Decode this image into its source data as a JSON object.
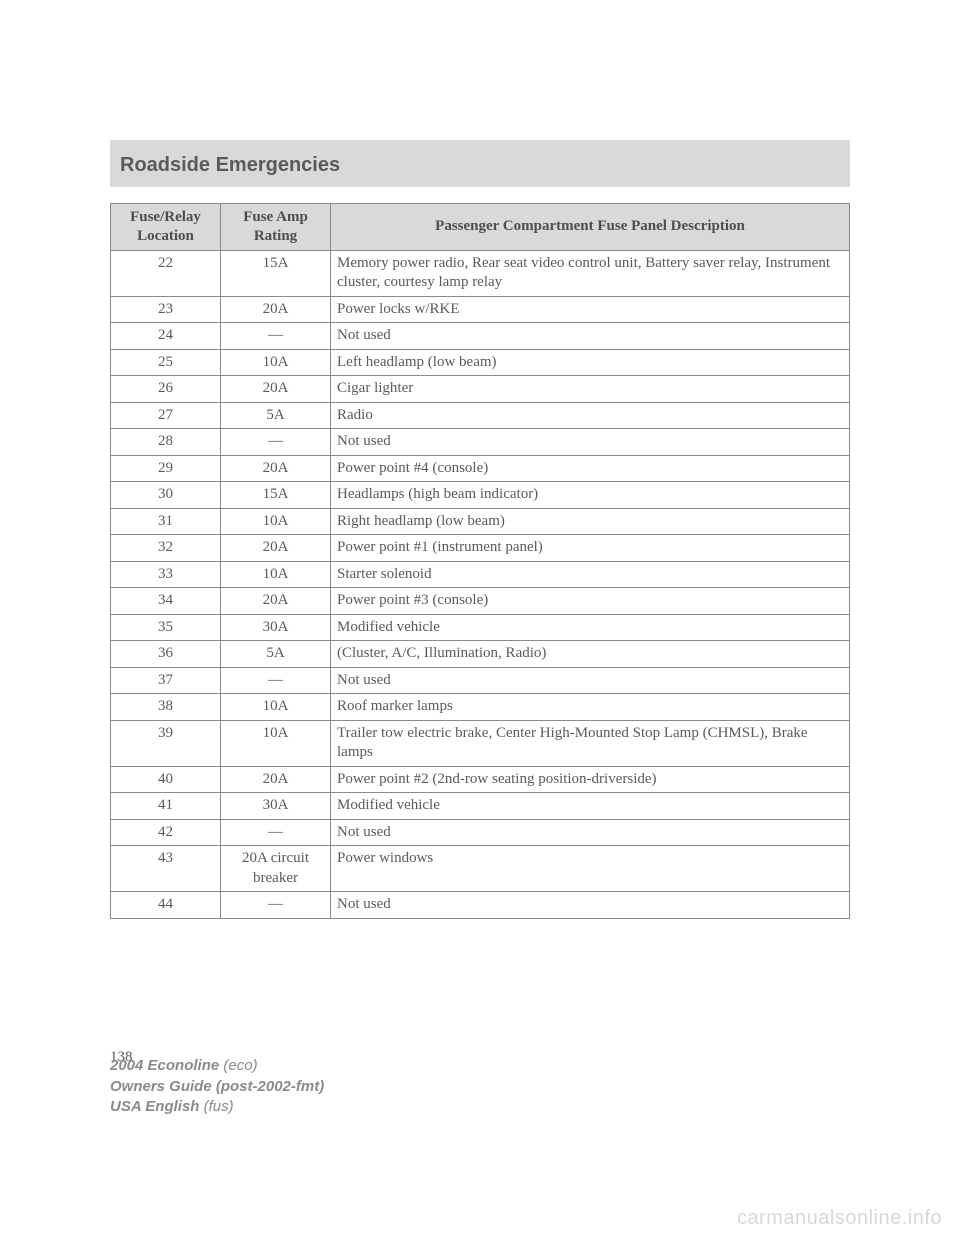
{
  "header": {
    "title": "Roadside Emergencies"
  },
  "table": {
    "columns": {
      "c1": "Fuse/Relay Location",
      "c2": "Fuse Amp Rating",
      "c3": "Passenger Compartment Fuse Panel Description"
    },
    "rows": [
      {
        "loc": "22",
        "amp": "15A",
        "desc": "Memory power radio, Rear seat video control unit, Battery saver relay, Instrument cluster, courtesy lamp relay"
      },
      {
        "loc": "23",
        "amp": "20A",
        "desc": "Power locks w/RKE"
      },
      {
        "loc": "24",
        "amp": "—",
        "desc": "Not used"
      },
      {
        "loc": "25",
        "amp": "10A",
        "desc": "Left headlamp (low beam)"
      },
      {
        "loc": "26",
        "amp": "20A",
        "desc": "Cigar lighter"
      },
      {
        "loc": "27",
        "amp": "5A",
        "desc": "Radio"
      },
      {
        "loc": "28",
        "amp": "—",
        "desc": "Not used"
      },
      {
        "loc": "29",
        "amp": "20A",
        "desc": "Power point #4 (console)"
      },
      {
        "loc": "30",
        "amp": "15A",
        "desc": "Headlamps (high beam indicator)"
      },
      {
        "loc": "31",
        "amp": "10A",
        "desc": "Right headlamp (low beam)"
      },
      {
        "loc": "32",
        "amp": "20A",
        "desc": "Power point #1 (instrument panel)"
      },
      {
        "loc": "33",
        "amp": "10A",
        "desc": "Starter solenoid"
      },
      {
        "loc": "34",
        "amp": "20A",
        "desc": "Power point #3 (console)"
      },
      {
        "loc": "35",
        "amp": "30A",
        "desc": "Modified vehicle"
      },
      {
        "loc": "36",
        "amp": "5A",
        "desc": "(Cluster, A/C, Illumination, Radio)"
      },
      {
        "loc": "37",
        "amp": "—",
        "desc": "Not used"
      },
      {
        "loc": "38",
        "amp": "10A",
        "desc": "Roof marker lamps"
      },
      {
        "loc": "39",
        "amp": "10A",
        "desc": "Trailer tow electric brake, Center High-Mounted Stop Lamp (CHMSL), Brake lamps"
      },
      {
        "loc": "40",
        "amp": "20A",
        "desc": "Power point #2 (2nd-row seating position-driverside)"
      },
      {
        "loc": "41",
        "amp": "30A",
        "desc": "Modified vehicle"
      },
      {
        "loc": "42",
        "amp": "—",
        "desc": "Not used"
      },
      {
        "loc": "43",
        "amp": "20A circuit breaker",
        "desc": "Power windows"
      },
      {
        "loc": "44",
        "amp": "—",
        "desc": "Not used"
      }
    ]
  },
  "page_number": "138",
  "footer": {
    "line1_bold": "2004 Econoline",
    "line1_rest": " (eco)",
    "line2_bold": "Owners Guide (post-2002-fmt)",
    "line3_bold": "USA English",
    "line3_rest": " (fus)"
  },
  "watermark": "carmanualsonline.info",
  "style": {
    "header_bg": "#d9d9d9",
    "border_color": "#8a8a8a",
    "text_color": "#5a5a5a",
    "watermark_color": "#d8d8d8"
  }
}
